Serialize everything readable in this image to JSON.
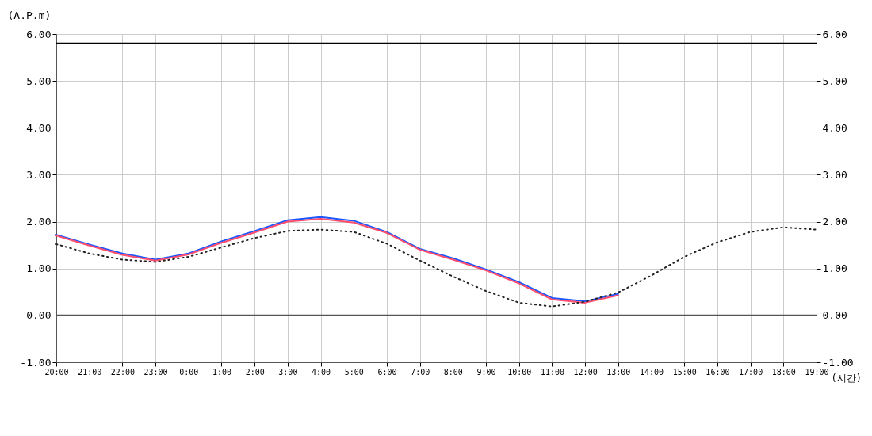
{
  "chart_data": {
    "type": "line",
    "xlabel": "(시간)",
    "ylabel": "(A.P.m)",
    "categories": [
      "20:00",
      "21:00",
      "22:00",
      "23:00",
      "0:00",
      "1:00",
      "2:00",
      "3:00",
      "4:00",
      "5:00",
      "6:00",
      "7:00",
      "8:00",
      "9:00",
      "10:00",
      "11:00",
      "12:00",
      "13:00",
      "14:00",
      "15:00",
      "16:00",
      "17:00",
      "18:00",
      "19:00"
    ],
    "series": [
      {
        "color": "#1a56ff",
        "values": [
          1.72,
          1.51,
          1.32,
          1.19,
          1.32,
          1.58,
          1.8,
          2.03,
          2.1,
          2.02,
          1.78,
          1.42,
          1.22,
          0.98,
          0.71,
          0.37,
          0.3,
          0.46,
          null,
          null,
          null,
          null,
          null,
          null
        ]
      },
      {
        "color": "#ff4d6d",
        "values": [
          1.7,
          1.49,
          1.29,
          1.17,
          1.3,
          1.55,
          1.77,
          2.0,
          2.06,
          1.98,
          1.76,
          1.4,
          1.19,
          0.96,
          0.68,
          0.34,
          0.27,
          0.43,
          null,
          null,
          null,
          null,
          null,
          null
        ]
      },
      {
        "color": "#222222",
        "line_style": "dotted",
        "values": [
          1.52,
          1.32,
          1.19,
          1.14,
          1.25,
          1.45,
          1.65,
          1.8,
          1.83,
          1.78,
          1.53,
          1.17,
          0.83,
          0.52,
          0.27,
          0.19,
          0.29,
          0.49,
          0.85,
          1.25,
          1.56,
          1.78,
          1.88,
          1.83
        ]
      }
    ],
    "ylim": [
      -1,
      6
    ],
    "yticks": [
      {
        "value": -1,
        "label": "-1.00"
      },
      {
        "value": 0,
        "label": "0.00"
      },
      {
        "value": 1,
        "label": "1.00"
      },
      {
        "value": 2,
        "label": "2.00"
      },
      {
        "value": 3,
        "label": "3.00"
      },
      {
        "value": 4,
        "label": "4.00"
      },
      {
        "value": 5,
        "label": "5.00"
      },
      {
        "value": 6,
        "label": "6.00"
      }
    ],
    "y2lim": [
      -1,
      6
    ],
    "y2ticks": [
      {
        "value": -1,
        "label": "-1.00"
      },
      {
        "value": 0,
        "label": "0.00"
      },
      {
        "value": 1,
        "label": "1.00"
      },
      {
        "value": 2,
        "label": "2.00"
      },
      {
        "value": 3,
        "label": "3.00"
      },
      {
        "value": 4,
        "label": "4.00"
      },
      {
        "value": 5,
        "label": "5.00"
      },
      {
        "value": 6,
        "label": "6.00"
      }
    ],
    "ref_lines": [
      {
        "axis": "y",
        "value": 5.8,
        "color": "#000000"
      },
      {
        "axis": "y",
        "value": 0,
        "color": "#555555"
      }
    ],
    "grid": true,
    "line_style": "solid"
  }
}
